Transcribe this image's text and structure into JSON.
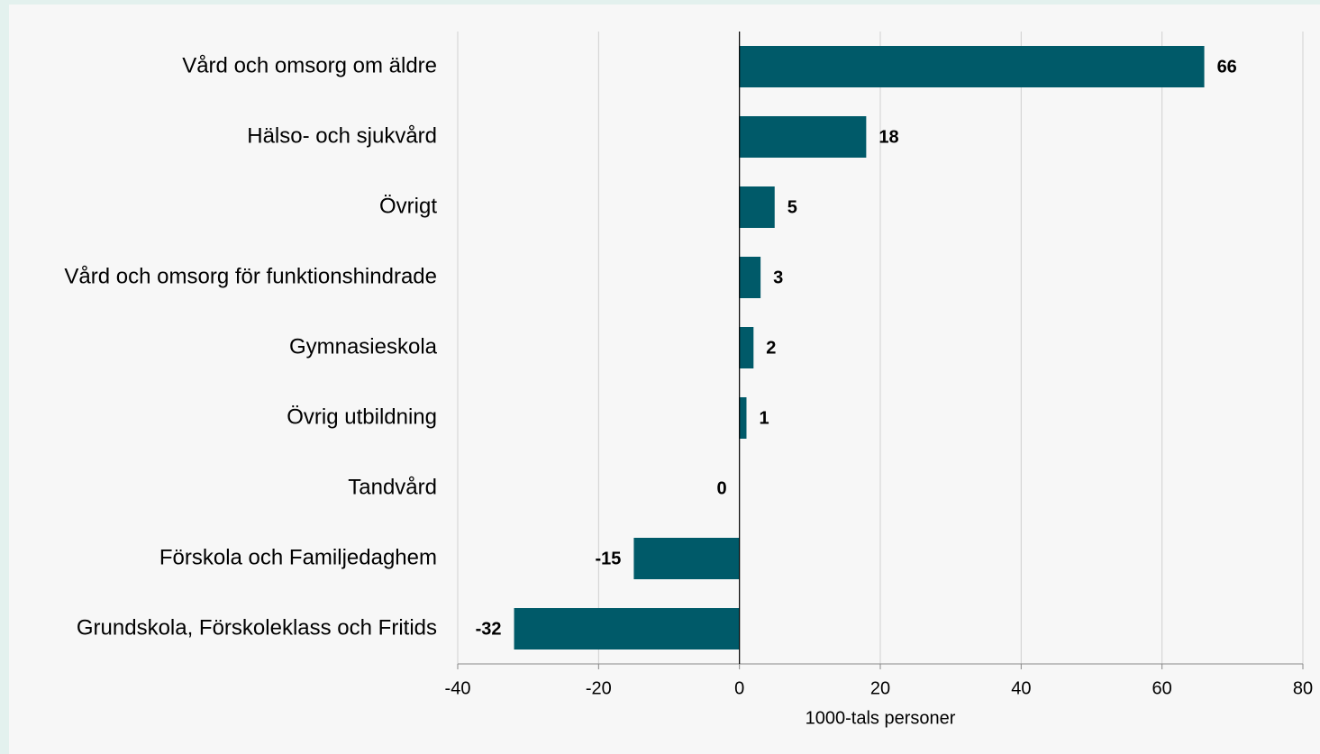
{
  "chart_data": {
    "type": "barh",
    "categories": [
      "Vård och omsorg om äldre",
      "Hälso- och sjukvård",
      "Övrigt",
      "Vård och omsorg för funktionshindrade",
      "Gymnasieskola",
      "Övrig utbildning",
      "Tandvård",
      "Förskola och Familjedaghem",
      "Grundskola, Förskoleklass och Fritids"
    ],
    "values": [
      66,
      18,
      5,
      3,
      2,
      1,
      0,
      -15,
      -32
    ],
    "color": "#005a69",
    "xlabel": "1000-tals personer",
    "xlim": [
      -40,
      80
    ],
    "xticks": [
      -40,
      -20,
      0,
      20,
      40,
      60,
      80
    ],
    "grid": true
  }
}
